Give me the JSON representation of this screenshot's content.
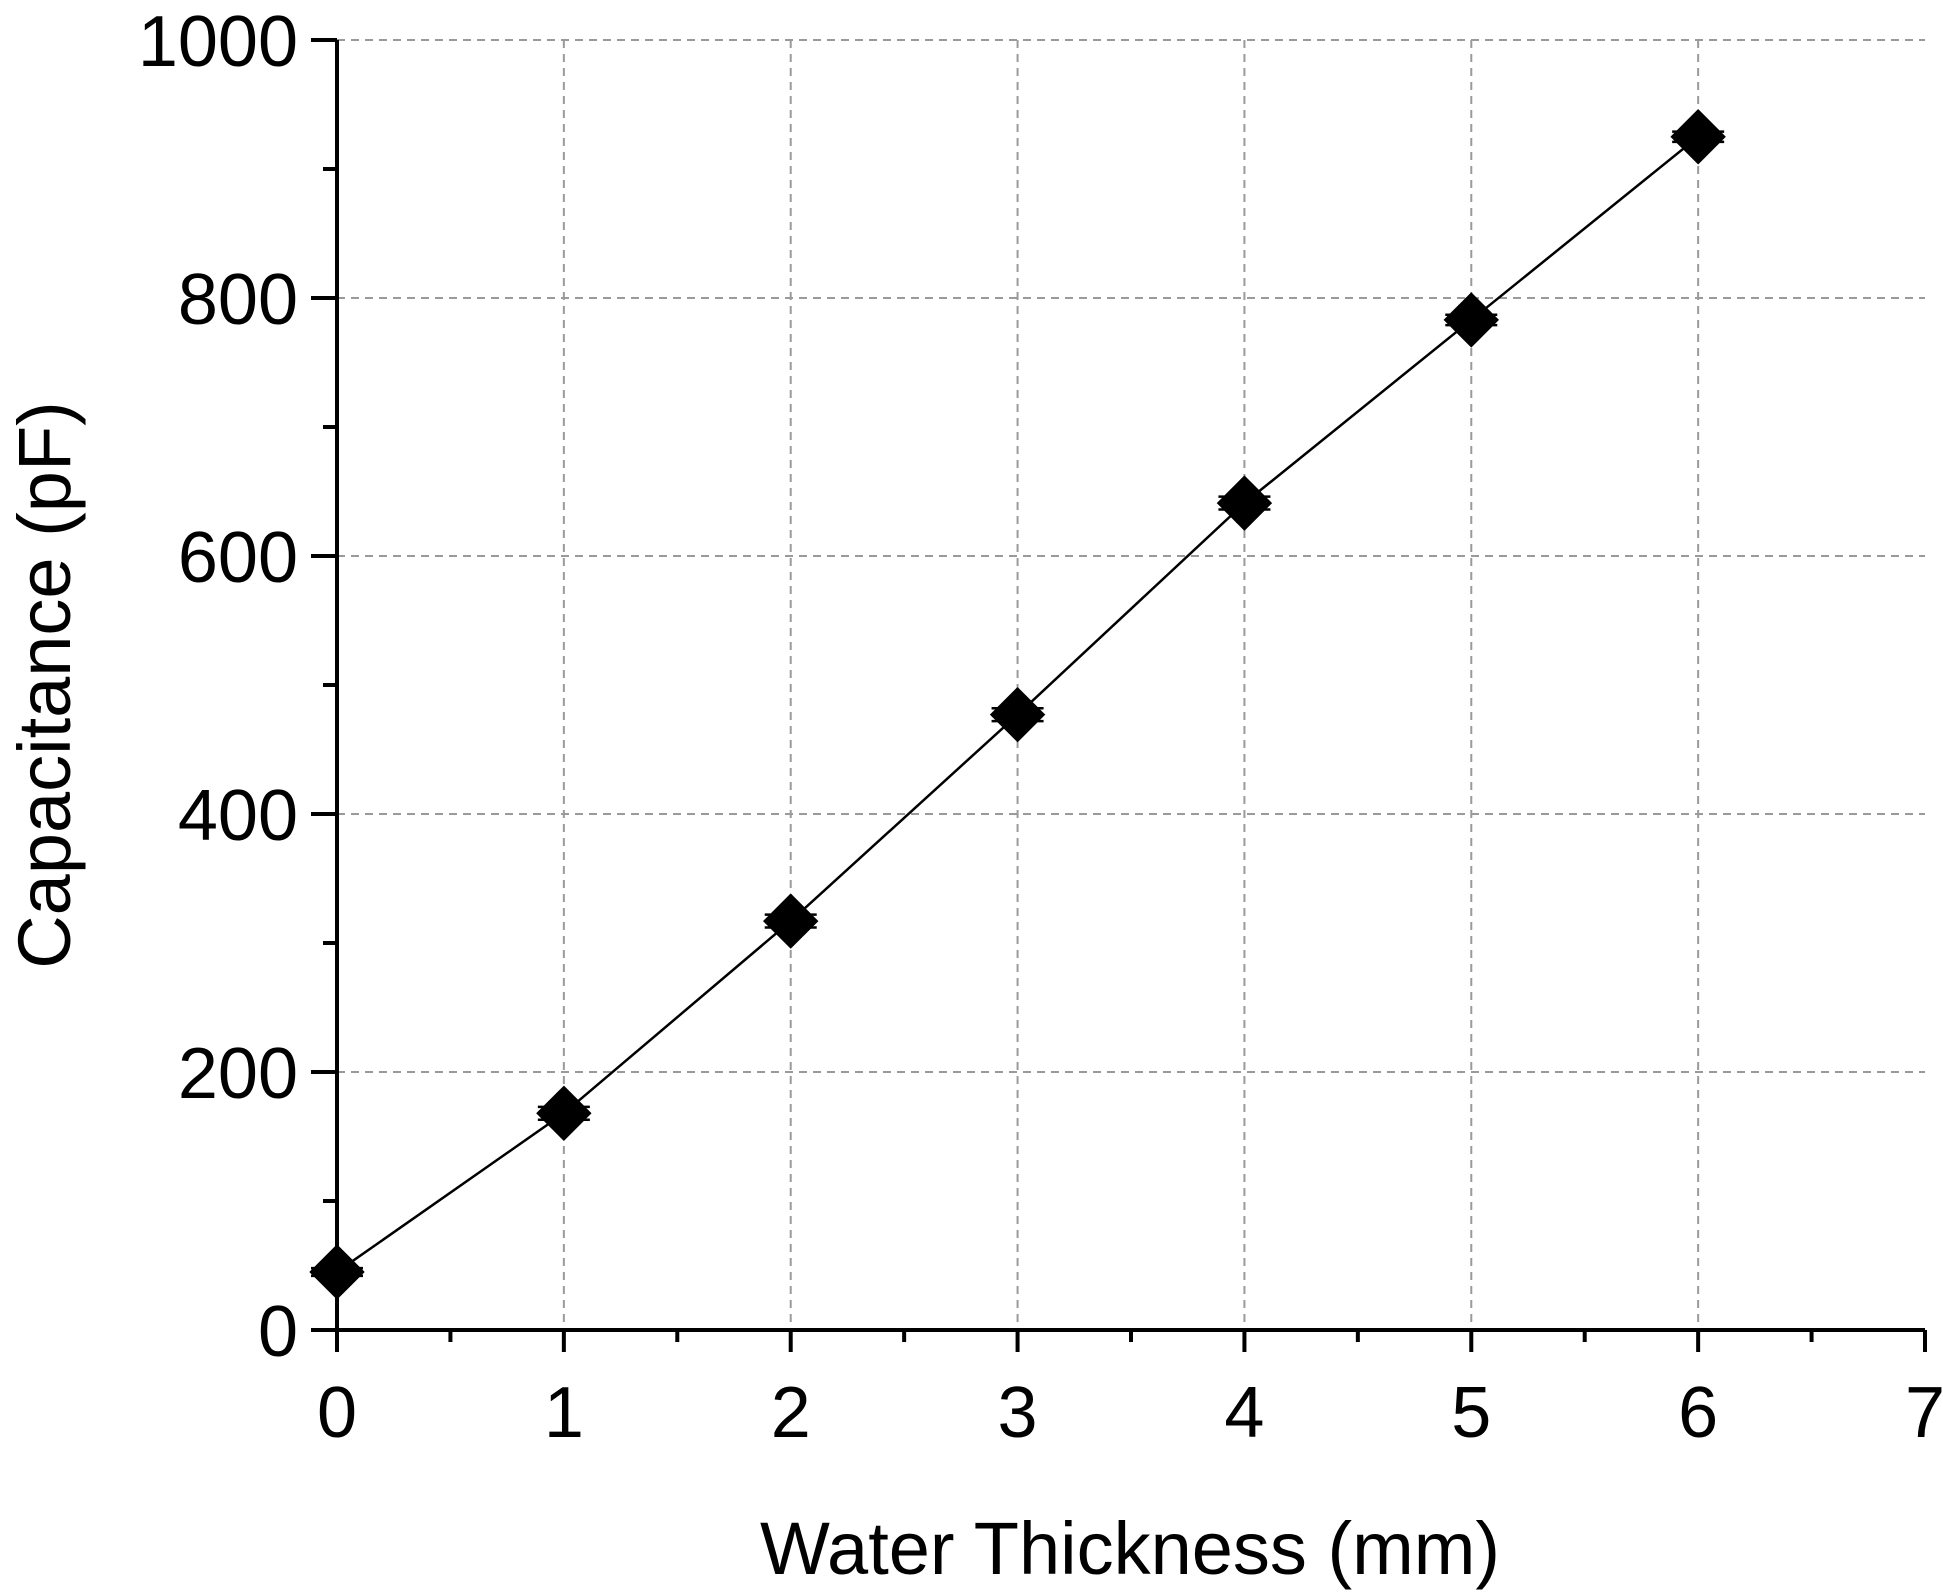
{
  "chart_data": {
    "type": "scatter",
    "title": "",
    "xlabel": "Water Thickness (mm)",
    "ylabel": "Capacitance (pF)",
    "xlim": [
      0,
      7
    ],
    "ylim": [
      0,
      1000
    ],
    "x_major_ticks": [
      0,
      1,
      2,
      3,
      4,
      5,
      6,
      7
    ],
    "x_tick_labels": [
      "0",
      "1",
      "2",
      "3",
      "4",
      "5",
      "6",
      "7"
    ],
    "x_minor_ticks": [
      0.5,
      1.5,
      2.5,
      3.5,
      4.5,
      5.5,
      6.5
    ],
    "y_major_ticks": [
      0,
      200,
      400,
      600,
      800,
      1000
    ],
    "y_tick_labels": [
      "0",
      "200",
      "400",
      "600",
      "800",
      "1000"
    ],
    "y_minor_ticks": [
      100,
      300,
      500,
      700,
      900
    ],
    "grid": true,
    "legend": "none",
    "series": [
      {
        "name": "Capacitance",
        "marker": "diamond",
        "line": true,
        "color": "#000000",
        "x": [
          0,
          1,
          2,
          3,
          4,
          5,
          6
        ],
        "y": [
          45,
          168,
          317,
          477,
          641,
          783,
          925
        ],
        "error": [
          3,
          5,
          5,
          5,
          5,
          4,
          4
        ]
      }
    ]
  }
}
